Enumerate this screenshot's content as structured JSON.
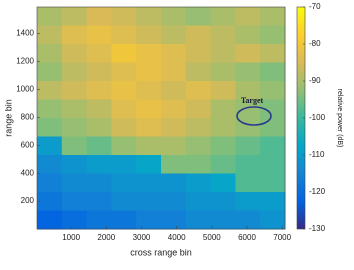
{
  "chart_data": {
    "type": "heatmap",
    "xlabel": "cross range bin",
    "ylabel": "range bin",
    "colorbar_label": "relative power (dB)",
    "annotation": "Target",
    "xlim": [
      30,
      7080
    ],
    "xticks": [
      1000,
      2000,
      3000,
      4000,
      5000,
      6000,
      7000
    ],
    "ylim": [
      0,
      1590
    ],
    "yticks": [
      200,
      400,
      600,
      800,
      1000,
      1200,
      1400
    ],
    "clim": [
      -130,
      -70
    ],
    "cticks": [
      -70,
      -80,
      -90,
      -100,
      -110,
      -120,
      -130
    ],
    "colormap": [
      "#352a87",
      "#0363e1",
      "#1485d4",
      "#06a7c6",
      "#38b99e",
      "#92bf73",
      "#d9ba56",
      "#fcce2e",
      "#f9fb0e"
    ],
    "values": [
      [
        -90,
        -88,
        -85,
        -86,
        -88,
        -90,
        -92,
        -90,
        -88,
        -90
      ],
      [
        -88,
        -84,
        -82,
        -84,
        -86,
        -88,
        -86,
        -88,
        -90,
        -92
      ],
      [
        -90,
        -86,
        -84,
        -80,
        -82,
        -84,
        -86,
        -88,
        -86,
        -88
      ],
      [
        -92,
        -88,
        -86,
        -84,
        -82,
        -84,
        -88,
        -90,
        -92,
        -94
      ],
      [
        -88,
        -86,
        -84,
        -82,
        -84,
        -86,
        -84,
        -86,
        -90,
        -92
      ],
      [
        -92,
        -90,
        -88,
        -84,
        -82,
        -84,
        -86,
        -90,
        -92,
        -94
      ],
      [
        -94,
        -92,
        -90,
        -86,
        -84,
        -86,
        -88,
        -90,
        -92,
        -94
      ],
      [
        -110,
        -94,
        -96,
        -92,
        -90,
        -90,
        -92,
        -94,
        -96,
        -98
      ],
      [
        -114,
        -112,
        -110,
        -110,
        -108,
        -94,
        -94,
        -96,
        -98,
        -98
      ],
      [
        -116,
        -114,
        -114,
        -112,
        -112,
        -112,
        -110,
        -108,
        -98,
        -98
      ],
      [
        -118,
        -116,
        -116,
        -114,
        -114,
        -114,
        -112,
        -112,
        -110,
        -110
      ],
      [
        -122,
        -120,
        -118,
        -118,
        -116,
        -116,
        -114,
        -114,
        -114,
        -112
      ]
    ]
  }
}
